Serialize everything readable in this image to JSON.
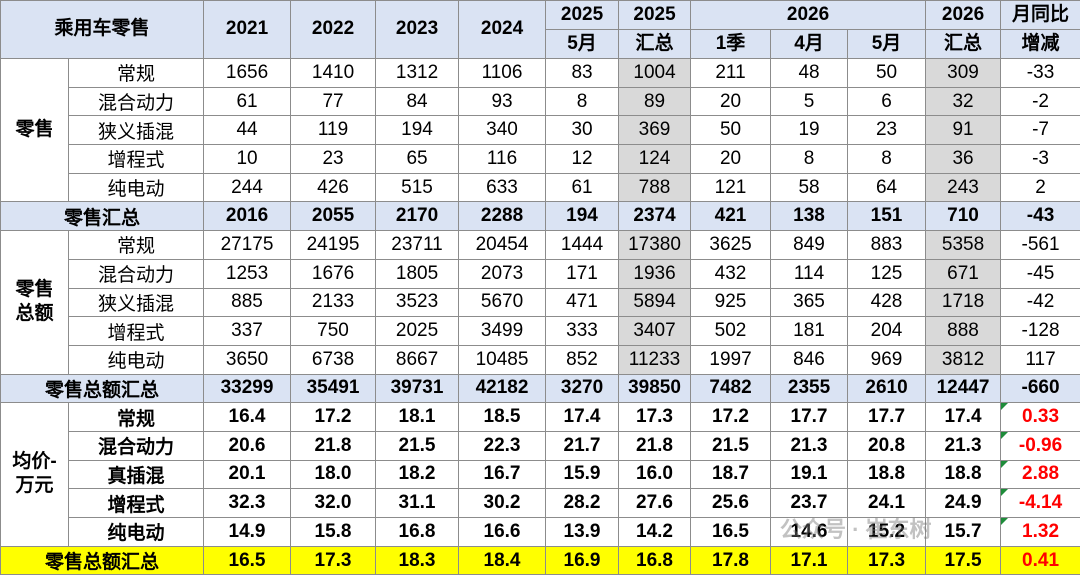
{
  "header": {
    "title": "乘用车零售",
    "years": [
      "2021",
      "2022",
      "2023",
      "2024"
    ],
    "row1": [
      "2025",
      "2025",
      "2026",
      "2026",
      "月同比"
    ],
    "row2": [
      "5月",
      "汇总",
      "1季",
      "4月",
      "5月",
      "汇总",
      "增减"
    ]
  },
  "sections": [
    {
      "label": "零售",
      "rows": [
        {
          "name": "常规",
          "values": [
            1656,
            1410,
            1312,
            1106,
            83,
            1004,
            211,
            48,
            50,
            309,
            -33
          ]
        },
        {
          "name": "混合动力",
          "values": [
            61,
            77,
            84,
            93,
            8,
            89,
            20,
            5,
            6,
            32,
            -2
          ]
        },
        {
          "name": "狭义插混",
          "values": [
            44,
            119,
            194,
            340,
            30,
            369,
            50,
            19,
            23,
            91,
            -7
          ]
        },
        {
          "name": "增程式",
          "values": [
            10,
            23,
            65,
            116,
            12,
            124,
            20,
            8,
            8,
            36,
            -3
          ]
        },
        {
          "name": "纯电动",
          "values": [
            244,
            426,
            515,
            633,
            61,
            788,
            121,
            58,
            64,
            243,
            2
          ]
        }
      ],
      "total": {
        "name": "零售汇总",
        "values": [
          2016,
          2055,
          2170,
          2288,
          194,
          2374,
          421,
          138,
          151,
          710,
          -43
        ]
      }
    },
    {
      "label": "零售总额",
      "rows": [
        {
          "name": "常规",
          "values": [
            27175,
            24195,
            23711,
            20454,
            1444,
            17380,
            3625,
            849,
            883,
            5358,
            -561
          ]
        },
        {
          "name": "混合动力",
          "values": [
            1253,
            1676,
            1805,
            2073,
            171,
            1936,
            432,
            114,
            125,
            671,
            -45
          ]
        },
        {
          "name": "狭义插混",
          "values": [
            885,
            2133,
            3523,
            5670,
            471,
            5894,
            925,
            365,
            428,
            1718,
            -42
          ]
        },
        {
          "name": "增程式",
          "values": [
            337,
            750,
            2025,
            3499,
            333,
            3407,
            502,
            181,
            204,
            888,
            -128
          ]
        },
        {
          "name": "纯电动",
          "values": [
            3650,
            6738,
            8667,
            10485,
            852,
            11233,
            1997,
            846,
            969,
            3812,
            117
          ]
        }
      ],
      "total": {
        "name": "零售总额汇总",
        "values": [
          33299,
          35491,
          39731,
          42182,
          3270,
          39850,
          7482,
          2355,
          2610,
          12447,
          -660
        ]
      }
    },
    {
      "label": "均价-万元",
      "rows": [
        {
          "name": "常规",
          "values": [
            "16.4",
            "17.2",
            "18.1",
            "18.5",
            "17.4",
            "17.3",
            "17.2",
            "17.7",
            "17.7",
            "17.4",
            "0.33"
          ]
        },
        {
          "name": "混合动力",
          "values": [
            "20.6",
            "21.8",
            "21.5",
            "22.3",
            "21.7",
            "21.8",
            "21.5",
            "21.3",
            "20.8",
            "21.3",
            "-0.96"
          ]
        },
        {
          "name": "真插混",
          "values": [
            "20.1",
            "18.0",
            "18.2",
            "16.7",
            "15.9",
            "16.0",
            "18.7",
            "19.1",
            "18.8",
            "18.8",
            "2.88"
          ]
        },
        {
          "name": "增程式",
          "values": [
            "32.3",
            "32.0",
            "31.1",
            "30.2",
            "28.2",
            "27.6",
            "25.6",
            "23.7",
            "24.1",
            "24.9",
            "-4.14"
          ]
        },
        {
          "name": "纯电动",
          "values": [
            "14.9",
            "15.8",
            "16.8",
            "16.6",
            "13.9",
            "14.2",
            "16.5",
            "14.6",
            "15.2",
            "15.7",
            "1.32"
          ]
        }
      ],
      "total": {
        "name": "零售总额汇总",
        "values": [
          "16.5",
          "17.3",
          "18.3",
          "18.4",
          "16.9",
          "16.8",
          "17.8",
          "17.1",
          "17.3",
          "17.5",
          "0.41"
        ]
      }
    }
  ],
  "watermark": "公众号 · 崔东树"
}
